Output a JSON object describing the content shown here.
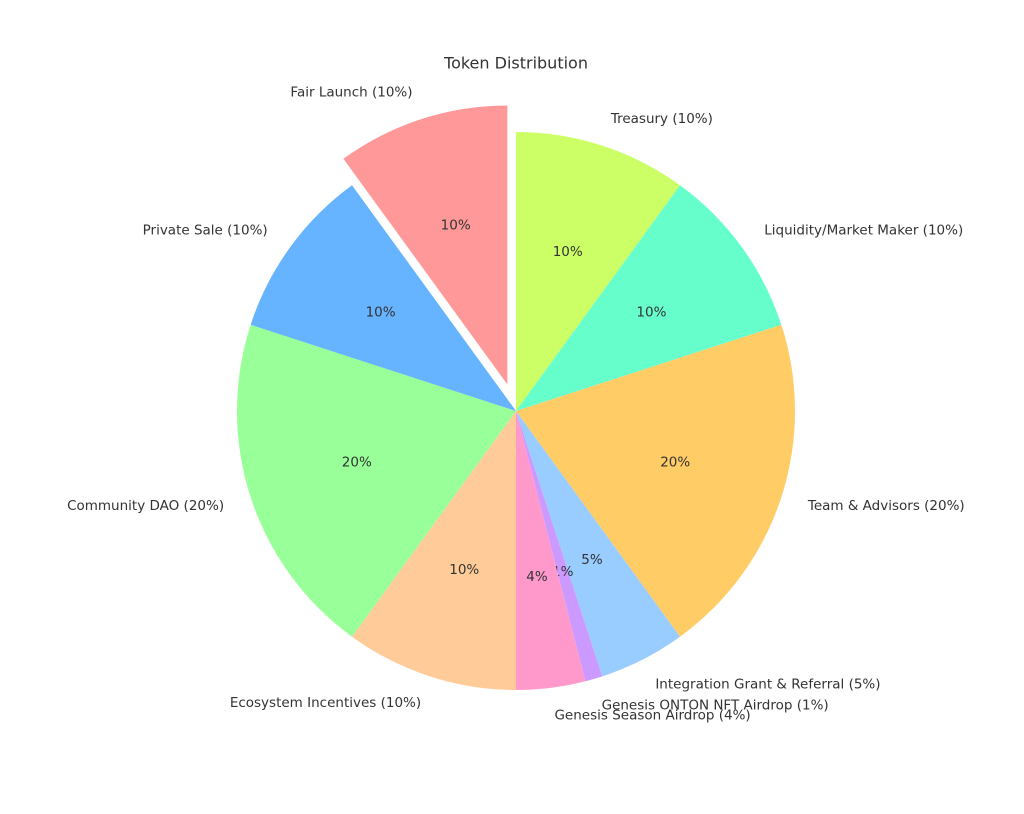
{
  "chart_data": {
    "type": "pie",
    "title": "Token Distribution",
    "categories": [
      "Treasury (10%)",
      "Liquidity/Market Maker (10%)",
      "Team & Advisors (20%)",
      "Integration Grant & Referral (5%)",
      "Genesis ONTON NFT Airdrop (1%)",
      "Genesis Season Airdrop (4%)",
      "Ecosystem Incentives (10%)",
      "Community DAO (20%)",
      "Private Sale (10%)",
      "Fair Launch (10%)"
    ],
    "values": [
      10,
      10,
      20,
      5,
      1,
      4,
      10,
      20,
      10,
      10
    ],
    "value_labels": [
      "10%",
      "10%",
      "20%",
      "5%",
      "1%",
      "4%",
      "10%",
      "20%",
      "10%",
      "10%"
    ],
    "colors": [
      "#ccff66",
      "#66ffcc",
      "#ffcc66",
      "#99ccff",
      "#cc99ff",
      "#ff99cc",
      "#ffcc99",
      "#99ff99",
      "#66b3ff",
      "#ff9999"
    ],
    "explode": [
      0,
      0,
      0,
      0,
      0,
      0,
      0,
      0,
      0,
      0.1
    ],
    "startangle": 90,
    "counterclock": false
  }
}
